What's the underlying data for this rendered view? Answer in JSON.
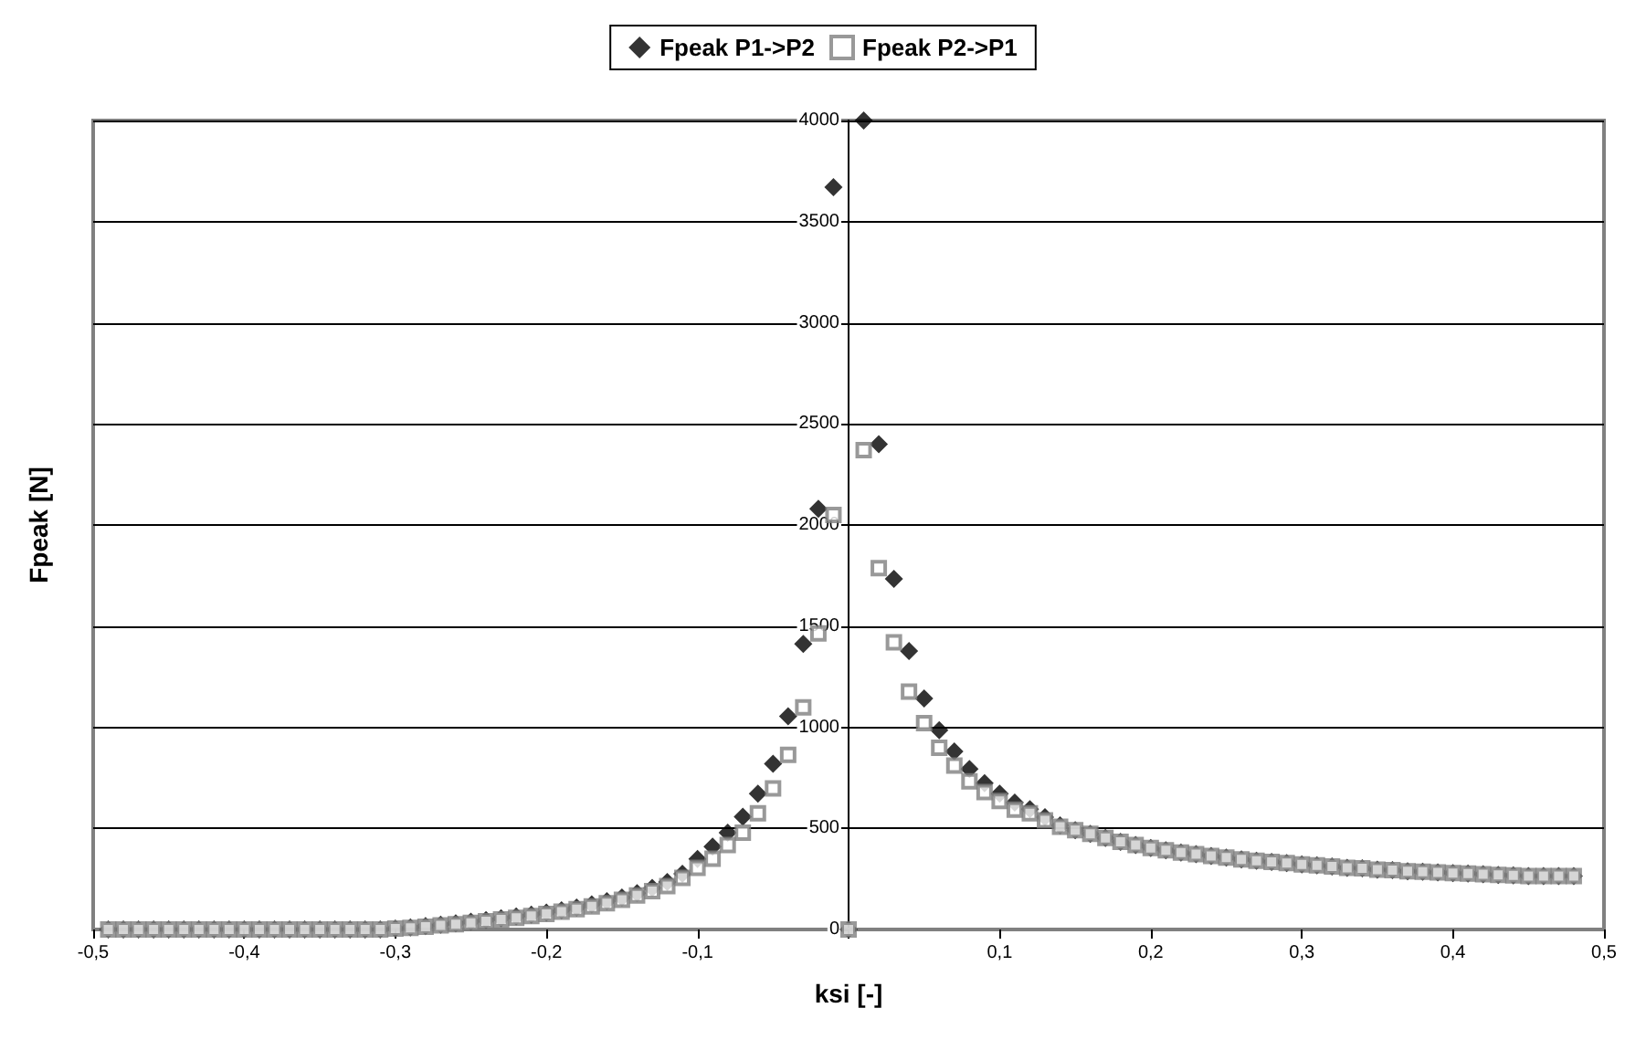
{
  "chart_data": {
    "type": "scatter",
    "xlabel": "ksi [-]",
    "ylabel": "Fpeak [N]",
    "x": [
      -0.49,
      -0.48,
      -0.47,
      -0.46,
      -0.45,
      -0.44,
      -0.43,
      -0.42,
      -0.41,
      -0.4,
      -0.39,
      -0.38,
      -0.37,
      -0.36,
      -0.35,
      -0.34,
      -0.33,
      -0.32,
      -0.31,
      -0.3,
      -0.29,
      -0.28,
      -0.27,
      -0.26,
      -0.25,
      -0.24,
      -0.23,
      -0.22,
      -0.21,
      -0.2,
      -0.19,
      -0.18,
      -0.17,
      -0.16,
      -0.15,
      -0.14,
      -0.13,
      -0.12,
      -0.11,
      -0.1,
      -0.09,
      -0.08,
      -0.07,
      -0.06,
      -0.05,
      -0.04,
      -0.03,
      -0.02,
      -0.01,
      0,
      0.01,
      0.02,
      0.03,
      0.04,
      0.05,
      0.06,
      0.07,
      0.08,
      0.09,
      0.1,
      0.11,
      0.12,
      0.13,
      0.14,
      0.15,
      0.16,
      0.17,
      0.18,
      0.19,
      0.2,
      0.21,
      0.22,
      0.23,
      0.24,
      0.25,
      0.26,
      0.27,
      0.28,
      0.29,
      0.3,
      0.31,
      0.32,
      0.33,
      0.34,
      0.35,
      0.36,
      0.37,
      0.38,
      0.39,
      0.4,
      0.41,
      0.42,
      0.43,
      0.44,
      0.45,
      0.46,
      0.47,
      0.48
    ],
    "series": [
      {
        "name": "Fpeak P1->P2",
        "color": "#000000",
        "marker": "diamond",
        "values": [
          0,
          0,
          0,
          0,
          0,
          0,
          0,
          0,
          0,
          0,
          0,
          0,
          0,
          0,
          0,
          0,
          0,
          0,
          0,
          5,
          10,
          17,
          24,
          30,
          38,
          46,
          55,
          64,
          73,
          83,
          95,
          108,
          124,
          140,
          158,
          180,
          205,
          235,
          275,
          349,
          410,
          479,
          558,
          671,
          819,
          1054,
          1412,
          2080,
          3670,
          0,
          4000,
          2400,
          1734,
          1377,
          1142,
          985,
          880,
          793,
          723,
          671,
          627,
          595,
          555,
          515,
          491,
          473,
          453,
          433,
          418,
          403,
          392,
          380,
          372,
          363,
          355,
          346,
          340,
          334,
          328,
          322,
          317,
          311,
          305,
          302,
          296,
          294,
          288,
          285,
          282,
          279,
          276,
          273,
          270,
          267,
          264,
          264,
          264,
          264
        ]
      },
      {
        "name": "Fpeak P2->P1",
        "color": "#808080",
        "marker": "square",
        "values": [
          0,
          0,
          0,
          0,
          0,
          0,
          0,
          0,
          0,
          0,
          0,
          0,
          0,
          0,
          0,
          0,
          0,
          0,
          0,
          4,
          8,
          14,
          20,
          26,
          33,
          41,
          50,
          58,
          67,
          77,
          88,
          100,
          114,
          130,
          147,
          168,
          190,
          215,
          255,
          305,
          350,
          418,
          479,
          575,
          697,
          863,
          1098,
          1464,
          2050,
          0,
          2370,
          1787,
          1420,
          1176,
          1020,
          898,
          810,
          732,
          680,
          636,
          593,
          575,
          540,
          508,
          491,
          473,
          453,
          433,
          418,
          403,
          392,
          380,
          372,
          363,
          355,
          346,
          340,
          334,
          328,
          322,
          317,
          311,
          305,
          302,
          296,
          294,
          288,
          285,
          282,
          279,
          276,
          273,
          270,
          267,
          264,
          264,
          264,
          264
        ]
      }
    ],
    "xlim": [
      -0.5,
      0.5
    ],
    "xticks": [
      {
        "value": -0.5,
        "label": "-0,5"
      },
      {
        "value": -0.4,
        "label": "-0,4"
      },
      {
        "value": -0.3,
        "label": "-0,3"
      },
      {
        "value": -0.2,
        "label": "-0,2"
      },
      {
        "value": -0.1,
        "label": "-0,1"
      },
      {
        "value": 0,
        "label": null
      },
      {
        "value": 0.1,
        "label": "0,1"
      },
      {
        "value": 0.2,
        "label": "0,2"
      },
      {
        "value": 0.3,
        "label": "0,3"
      },
      {
        "value": 0.4,
        "label": "0,4"
      },
      {
        "value": 0.5,
        "label": "0,5"
      }
    ],
    "ylim": [
      0,
      4000
    ],
    "yticks": [
      0,
      500,
      1000,
      1500,
      2000,
      2500,
      3000,
      3500,
      4000
    ],
    "grid": "y",
    "legend": "top"
  }
}
